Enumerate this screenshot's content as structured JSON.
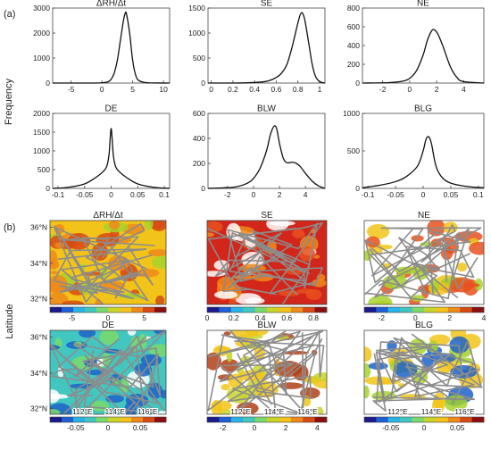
{
  "figure": {
    "panel_a_label": "(a)",
    "panel_b_label": "(b)",
    "ylabel_a": "Frequency",
    "ylabel_b": "Latitude"
  },
  "chart_data": [
    {
      "id": "dRH",
      "type": "line",
      "title": "ΔRH/Δt",
      "xlim": [
        -8,
        11
      ],
      "ylim": [
        0,
        3000
      ],
      "xticks": [
        -5,
        0,
        5,
        10
      ],
      "yticks": [
        0,
        1000,
        2000,
        3000
      ],
      "series": [
        {
          "x": [
            -8,
            -2,
            0,
            1,
            1.5,
            2,
            2.5,
            3,
            3.5,
            3.8,
            4,
            4.5,
            5,
            5.5,
            6,
            7,
            8,
            11
          ],
          "y": [
            0,
            0,
            10,
            50,
            150,
            400,
            900,
            1700,
            2500,
            2800,
            2750,
            2000,
            900,
            300,
            100,
            20,
            5,
            0
          ]
        }
      ]
    },
    {
      "id": "SE",
      "type": "line",
      "title": "SE",
      "xlim": [
        -0.03,
        1.05
      ],
      "ylim": [
        0,
        1500
      ],
      "xticks": [
        0,
        0.2,
        0.4,
        0.6,
        0.8,
        1
      ],
      "yticks": [
        0,
        500,
        1000,
        1500
      ],
      "series": [
        {
          "x": [
            -0.03,
            0.2,
            0.4,
            0.5,
            0.55,
            0.6,
            0.65,
            0.7,
            0.75,
            0.8,
            0.83,
            0.86,
            0.9,
            0.93,
            0.96,
            1.0,
            1.05
          ],
          "y": [
            0,
            0,
            10,
            30,
            60,
            110,
            200,
            380,
            750,
            1200,
            1400,
            1300,
            800,
            400,
            150,
            30,
            0
          ]
        }
      ]
    },
    {
      "id": "NE",
      "type": "line",
      "title": "NE",
      "xlim": [
        -3.5,
        5.5
      ],
      "ylim": [
        0,
        800
      ],
      "xticks": [
        -2,
        0,
        2,
        4
      ],
      "yticks": [
        0,
        200,
        400,
        600,
        800
      ],
      "series": [
        {
          "x": [
            -3.5,
            -1.5,
            -0.5,
            0,
            0.5,
            1,
            1.3,
            1.6,
            1.8,
            2.1,
            2.5,
            3,
            3.5,
            4,
            5.5
          ],
          "y": [
            0,
            5,
            20,
            50,
            130,
            300,
            450,
            550,
            570,
            520,
            380,
            180,
            60,
            15,
            0
          ]
        }
      ]
    },
    {
      "id": "DE",
      "type": "line",
      "title": "DE",
      "xlim": [
        -0.11,
        0.11
      ],
      "ylim": [
        0,
        2000
      ],
      "xticks": [
        -0.1,
        -0.05,
        0,
        0.05,
        0.1
      ],
      "yticks": [
        0,
        500,
        1000,
        1500,
        2000
      ],
      "series": [
        {
          "x": [
            -0.11,
            -0.08,
            -0.05,
            -0.03,
            -0.015,
            -0.008,
            -0.004,
            -0.002,
            0,
            0.002,
            0.004,
            0.008,
            0.015,
            0.03,
            0.05,
            0.08,
            0.11
          ],
          "y": [
            0,
            30,
            120,
            280,
            450,
            600,
            900,
            1300,
            1600,
            1300,
            900,
            600,
            450,
            280,
            120,
            30,
            0
          ]
        }
      ]
    },
    {
      "id": "BLW",
      "type": "line",
      "title": "BLW",
      "xlim": [
        -3.5,
        5.5
      ],
      "ylim": [
        0,
        600
      ],
      "xticks": [
        -2,
        0,
        2,
        4
      ],
      "yticks": [
        0,
        200,
        400,
        600
      ],
      "series": [
        {
          "x": [
            -3.5,
            -1.5,
            -0.5,
            0,
            0.5,
            1,
            1.3,
            1.6,
            1.8,
            2,
            2.3,
            2.6,
            3,
            3.3,
            3.6,
            4,
            4.5,
            5,
            5.5
          ],
          "y": [
            0,
            10,
            40,
            80,
            160,
            300,
            430,
            500,
            470,
            360,
            240,
            205,
            210,
            200,
            175,
            120,
            60,
            20,
            0
          ]
        }
      ]
    },
    {
      "id": "BLG",
      "type": "line",
      "title": "BLG",
      "xlim": [
        -0.11,
        0.11
      ],
      "ylim": [
        0,
        1000
      ],
      "xticks": [
        -0.1,
        -0.05,
        0,
        0.05,
        0.1
      ],
      "yticks": [
        0,
        500,
        1000
      ],
      "series": [
        {
          "x": [
            -0.11,
            -0.08,
            -0.05,
            -0.03,
            -0.01,
            0,
            0.005,
            0.01,
            0.015,
            0.02,
            0.025,
            0.035,
            0.05,
            0.08,
            0.11
          ],
          "y": [
            10,
            40,
            90,
            160,
            300,
            500,
            650,
            690,
            600,
            400,
            260,
            140,
            70,
            25,
            10
          ]
        }
      ]
    }
  ],
  "maps": {
    "lat_labels": [
      "36°N",
      "34°N",
      "32°N"
    ],
    "lon_labels": [
      "112°E",
      "114°E",
      "116°E"
    ],
    "panels": [
      {
        "title": "ΔRH/Δt",
        "colorbar": {
          "ticks": [
            "-5",
            "0",
            "5"
          ],
          "values": [
            -5,
            0,
            5
          ],
          "min": -8,
          "max": 8
        },
        "base_color": "#f2c419",
        "accent_colors": [
          "#f08a1b",
          "#a5d32d",
          "#d84a14"
        ]
      },
      {
        "title": "SE",
        "colorbar": {
          "ticks": [
            "0",
            "0.2",
            "0.4",
            "0.6",
            "0.8"
          ],
          "values": [
            0,
            0.2,
            0.4,
            0.6,
            0.8
          ],
          "min": 0,
          "max": 0.9
        },
        "base_color": "#d2261a",
        "accent_colors": [
          "#e8511f",
          "#ffffff",
          "#f08a1b"
        ]
      },
      {
        "title": "NE",
        "colorbar": {
          "ticks": [
            "-2",
            "0",
            "2",
            "4"
          ],
          "values": [
            -2,
            0,
            2,
            4
          ],
          "min": -3,
          "max": 4
        },
        "base_color": "#ffffff",
        "accent_colors": [
          "#f2c419",
          "#a5d32d",
          "#e8511f"
        ]
      },
      {
        "title": "DE",
        "colorbar": {
          "ticks": [
            "-0.05",
            "0",
            "0.05"
          ],
          "values": [
            -0.05,
            0,
            0.05
          ],
          "min": -0.09,
          "max": 0.09
        },
        "base_color": "#41c7c0",
        "accent_colors": [
          "#7ad96a",
          "#ffffff",
          "#1e63c8"
        ]
      },
      {
        "title": "BLW",
        "colorbar": {
          "ticks": [
            "-2",
            "0",
            "2",
            "4"
          ],
          "values": [
            -2,
            0,
            2,
            4
          ],
          "min": -3,
          "max": 4.6
        },
        "base_color": "#ffffff",
        "accent_colors": [
          "#c8d42a",
          "#f2c419",
          "#b04016"
        ]
      },
      {
        "title": "BLG",
        "colorbar": {
          "ticks": [
            "-0.05",
            "0",
            "0.05"
          ],
          "values": [
            -0.05,
            0,
            0.05
          ],
          "min": -0.09,
          "max": 0.09
        },
        "base_color": "#ffffff",
        "accent_colors": [
          "#a5d32d",
          "#f2c419",
          "#1e63c8"
        ]
      }
    ]
  },
  "colors": {
    "line": "#111111",
    "axis": "#444444",
    "border": "#8c8c8c",
    "colormap": [
      "#1a1a8c",
      "#1f5fd6",
      "#29b3e6",
      "#41c7c0",
      "#7ad96a",
      "#c8d42a",
      "#f2c419",
      "#f08a1b",
      "#d84a14",
      "#8a1010"
    ]
  }
}
